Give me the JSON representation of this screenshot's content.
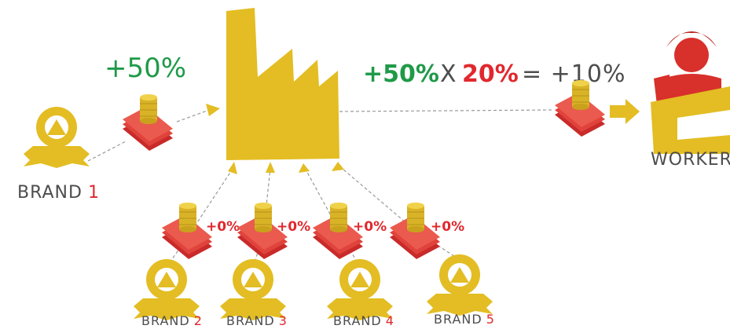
{
  "main_brand": {
    "label": "BRAND",
    "number": "1",
    "gain": "+50%"
  },
  "formula": {
    "gain": "+50%",
    "operator": "X",
    "share": "20%",
    "result": "= +10%"
  },
  "worker": {
    "label": "WORKER"
  },
  "brands": [
    {
      "label": "BRAND",
      "number": "2",
      "gain": "+0%"
    },
    {
      "label": "BRAND",
      "number": "3",
      "gain": "+0%"
    },
    {
      "label": "BRAND",
      "number": "4",
      "gain": "+0%"
    },
    {
      "label": "BRAND",
      "number": "5",
      "gain": "+0%"
    }
  ]
}
